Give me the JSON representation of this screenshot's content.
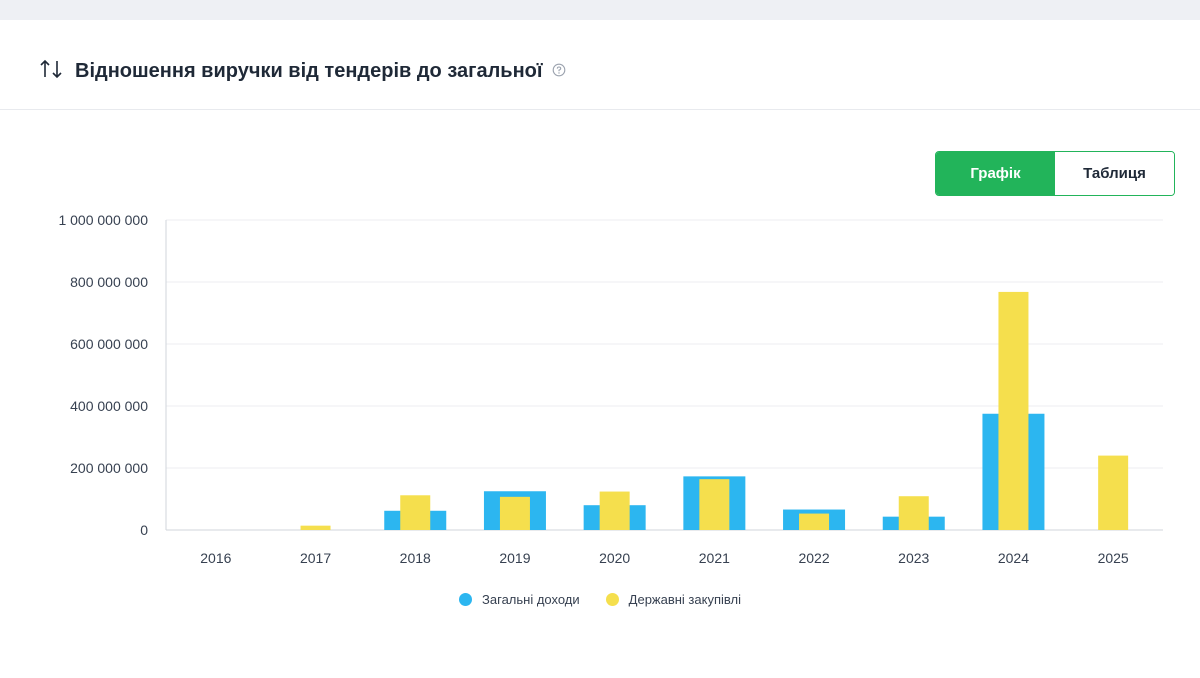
{
  "header": {
    "title": "Відношення виручки від тендерів до загальної",
    "sort_icon": "sort-arrows-icon",
    "help_icon": "question-circle-icon"
  },
  "view_toggle": {
    "chart_label": "Графік",
    "table_label": "Таблиця",
    "active": "chart"
  },
  "colors": {
    "accent_green": "#22b45a",
    "series_total": "#2cb6f0",
    "series_tenders": "#f5df4d",
    "grid": "#eceef2",
    "axis_text": "#374151"
  },
  "chart_data": {
    "type": "bar",
    "categories": [
      "2016",
      "2017",
      "2018",
      "2019",
      "2020",
      "2021",
      "2022",
      "2023",
      "2024",
      "2025"
    ],
    "series": [
      {
        "name": "Загальні доходи",
        "values": [
          0,
          0,
          62000000,
          125000000,
          80000000,
          173000000,
          66000000,
          43000000,
          375000000,
          0
        ]
      },
      {
        "name": "Державні закупівлі",
        "values": [
          0,
          14000000,
          112000000,
          107000000,
          124000000,
          164000000,
          53000000,
          109000000,
          768000000,
          240000000
        ]
      }
    ],
    "yticks": [
      "0",
      "200 000 000",
      "400 000 000",
      "600 000 000",
      "800 000 000",
      "1 000 000 000"
    ],
    "ylim": [
      0,
      1000000000
    ],
    "grid": true,
    "legend": "bottom"
  }
}
